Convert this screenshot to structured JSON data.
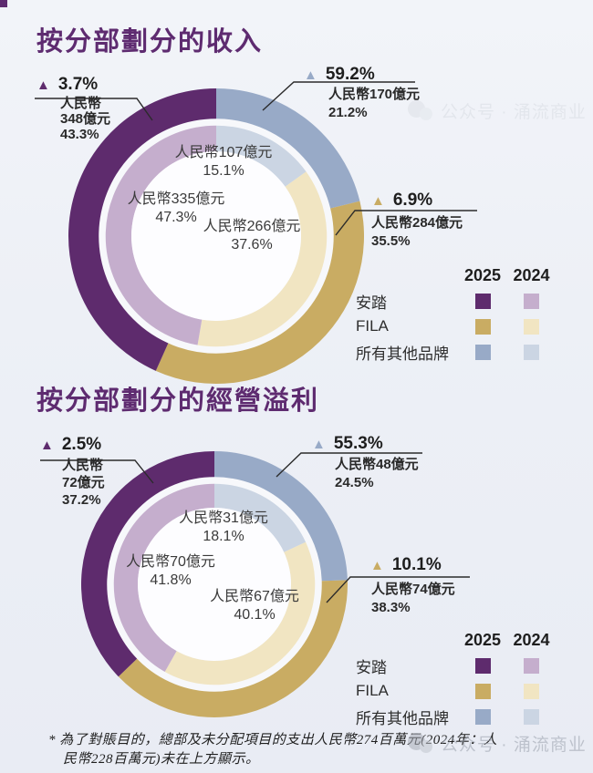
{
  "colors": {
    "title": "#5e2b70",
    "background": "#edf0f6",
    "leader_line": "#2b2b2b"
  },
  "legend": {
    "years": [
      "2025",
      "2024"
    ],
    "rows": [
      "安踏",
      "FILA",
      "所有其他品牌"
    ]
  },
  "page": {
    "watermark_text": "公众号 · 涌流商业",
    "footnote_line1": "* 為了對賬目的，總部及未分配項目的支出人民幣274百萬元(2024年：人",
    "footnote_line2": "民幣228百萬元)未在上方顯示。"
  },
  "chart_data": [
    {
      "type": "pie",
      "variant": "concentric-donut",
      "title": "按分部劃分的收入",
      "unit": "人民幣億元",
      "categories_clockwise": [
        "所有其他品牌",
        "FILA",
        "安踏"
      ],
      "series": [
        {
          "name": "2025",
          "ring": "outer",
          "values_rmb_yi": [
            170,
            284,
            348
          ],
          "share_pct": [
            21.2,
            35.5,
            43.3
          ],
          "yoy_growth_pct": [
            59.2,
            6.9,
            3.7
          ],
          "colors": [
            "#98aac7",
            "#c9ac63",
            "#5e2b6d"
          ]
        },
        {
          "name": "2024",
          "ring": "inner",
          "values_rmb_yi": [
            107,
            266,
            335
          ],
          "share_pct": [
            15.1,
            37.6,
            47.3
          ],
          "colors": [
            "#cbd5e3",
            "#f1e5c2",
            "#c5aecd"
          ]
        }
      ],
      "callouts": [
        {
          "growth": "3.7%",
          "lines": [
            "人民幣",
            "348億元",
            "43.3%"
          ]
        },
        {
          "growth": "59.2%",
          "lines": [
            "人民幣170億元",
            "21.2%"
          ]
        },
        {
          "growth": "6.9%",
          "lines": [
            "人民幣284億元",
            "35.5%"
          ]
        }
      ],
      "inner_labels": [
        [
          "人民幣107億元",
          "15.1%"
        ],
        [
          "人民幣335億元",
          "47.3%"
        ],
        [
          "人民幣266億元",
          "37.6%"
        ]
      ]
    },
    {
      "type": "pie",
      "variant": "concentric-donut",
      "title": "按分部劃分的經營溢利",
      "unit": "人民幣億元",
      "categories_clockwise": [
        "所有其他品牌",
        "FILA",
        "安踏"
      ],
      "series": [
        {
          "name": "2025",
          "ring": "outer",
          "values_rmb_yi": [
            48,
            74,
            72
          ],
          "share_pct": [
            24.5,
            38.3,
            37.2
          ],
          "yoy_growth_pct": [
            55.3,
            10.1,
            2.5
          ],
          "colors": [
            "#98aac7",
            "#c9ac63",
            "#5e2b6d"
          ]
        },
        {
          "name": "2024",
          "ring": "inner",
          "values_rmb_yi": [
            31,
            67,
            70
          ],
          "share_pct": [
            18.1,
            40.1,
            41.8
          ],
          "colors": [
            "#cbd5e3",
            "#f1e5c2",
            "#c5aecd"
          ]
        }
      ],
      "callouts": [
        {
          "growth": "2.5%",
          "lines": [
            "人民幣",
            "72億元",
            "37.2%"
          ]
        },
        {
          "growth": "55.3%",
          "lines": [
            "人民幣48億元",
            "24.5%"
          ]
        },
        {
          "growth": "10.1%",
          "lines": [
            "人民幣74億元",
            "38.3%"
          ]
        }
      ],
      "inner_labels": [
        [
          "人民幣31億元",
          "18.1%"
        ],
        [
          "人民幣70億元",
          "41.8%"
        ],
        [
          "人民幣67億元",
          "40.1%"
        ]
      ]
    }
  ]
}
